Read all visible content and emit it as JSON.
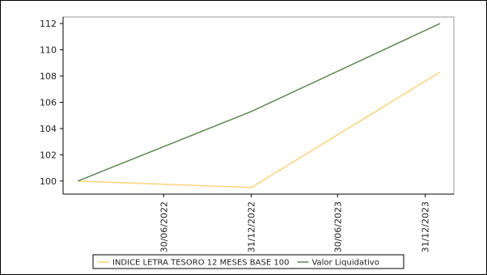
{
  "chart_data": {
    "type": "line",
    "x": [
      "30/06/2022",
      "31/12/2022",
      "30/06/2023",
      "31/12/2023"
    ],
    "series": [
      {
        "name": "INDICE LETRA TESORO 12 MESES BASE 100",
        "color": "#ffd37a",
        "points": [
          [
            "2022-01-01",
            100.0
          ],
          [
            "2022-12-31",
            99.5
          ],
          [
            "2024-01-31",
            108.3
          ]
        ]
      },
      {
        "name": "Valor Liquidativo",
        "color": "#5a8a50",
        "points": [
          [
            "2022-01-01",
            100.0
          ],
          [
            "2022-12-31",
            105.3
          ],
          [
            "2024-01-31",
            112.0
          ]
        ]
      }
    ],
    "ylim": [
      99,
      112.5
    ],
    "yticks": [
      100,
      102,
      104,
      106,
      108,
      110,
      112
    ],
    "xlim": [
      "2021-12-01",
      "2024-02-29"
    ],
    "xticks": [
      "2022-06-30",
      "2022-12-31",
      "2023-06-30",
      "2023-12-31"
    ],
    "title": "",
    "xlabel": "",
    "ylabel": "",
    "legend": "bottom",
    "grid": false
  }
}
